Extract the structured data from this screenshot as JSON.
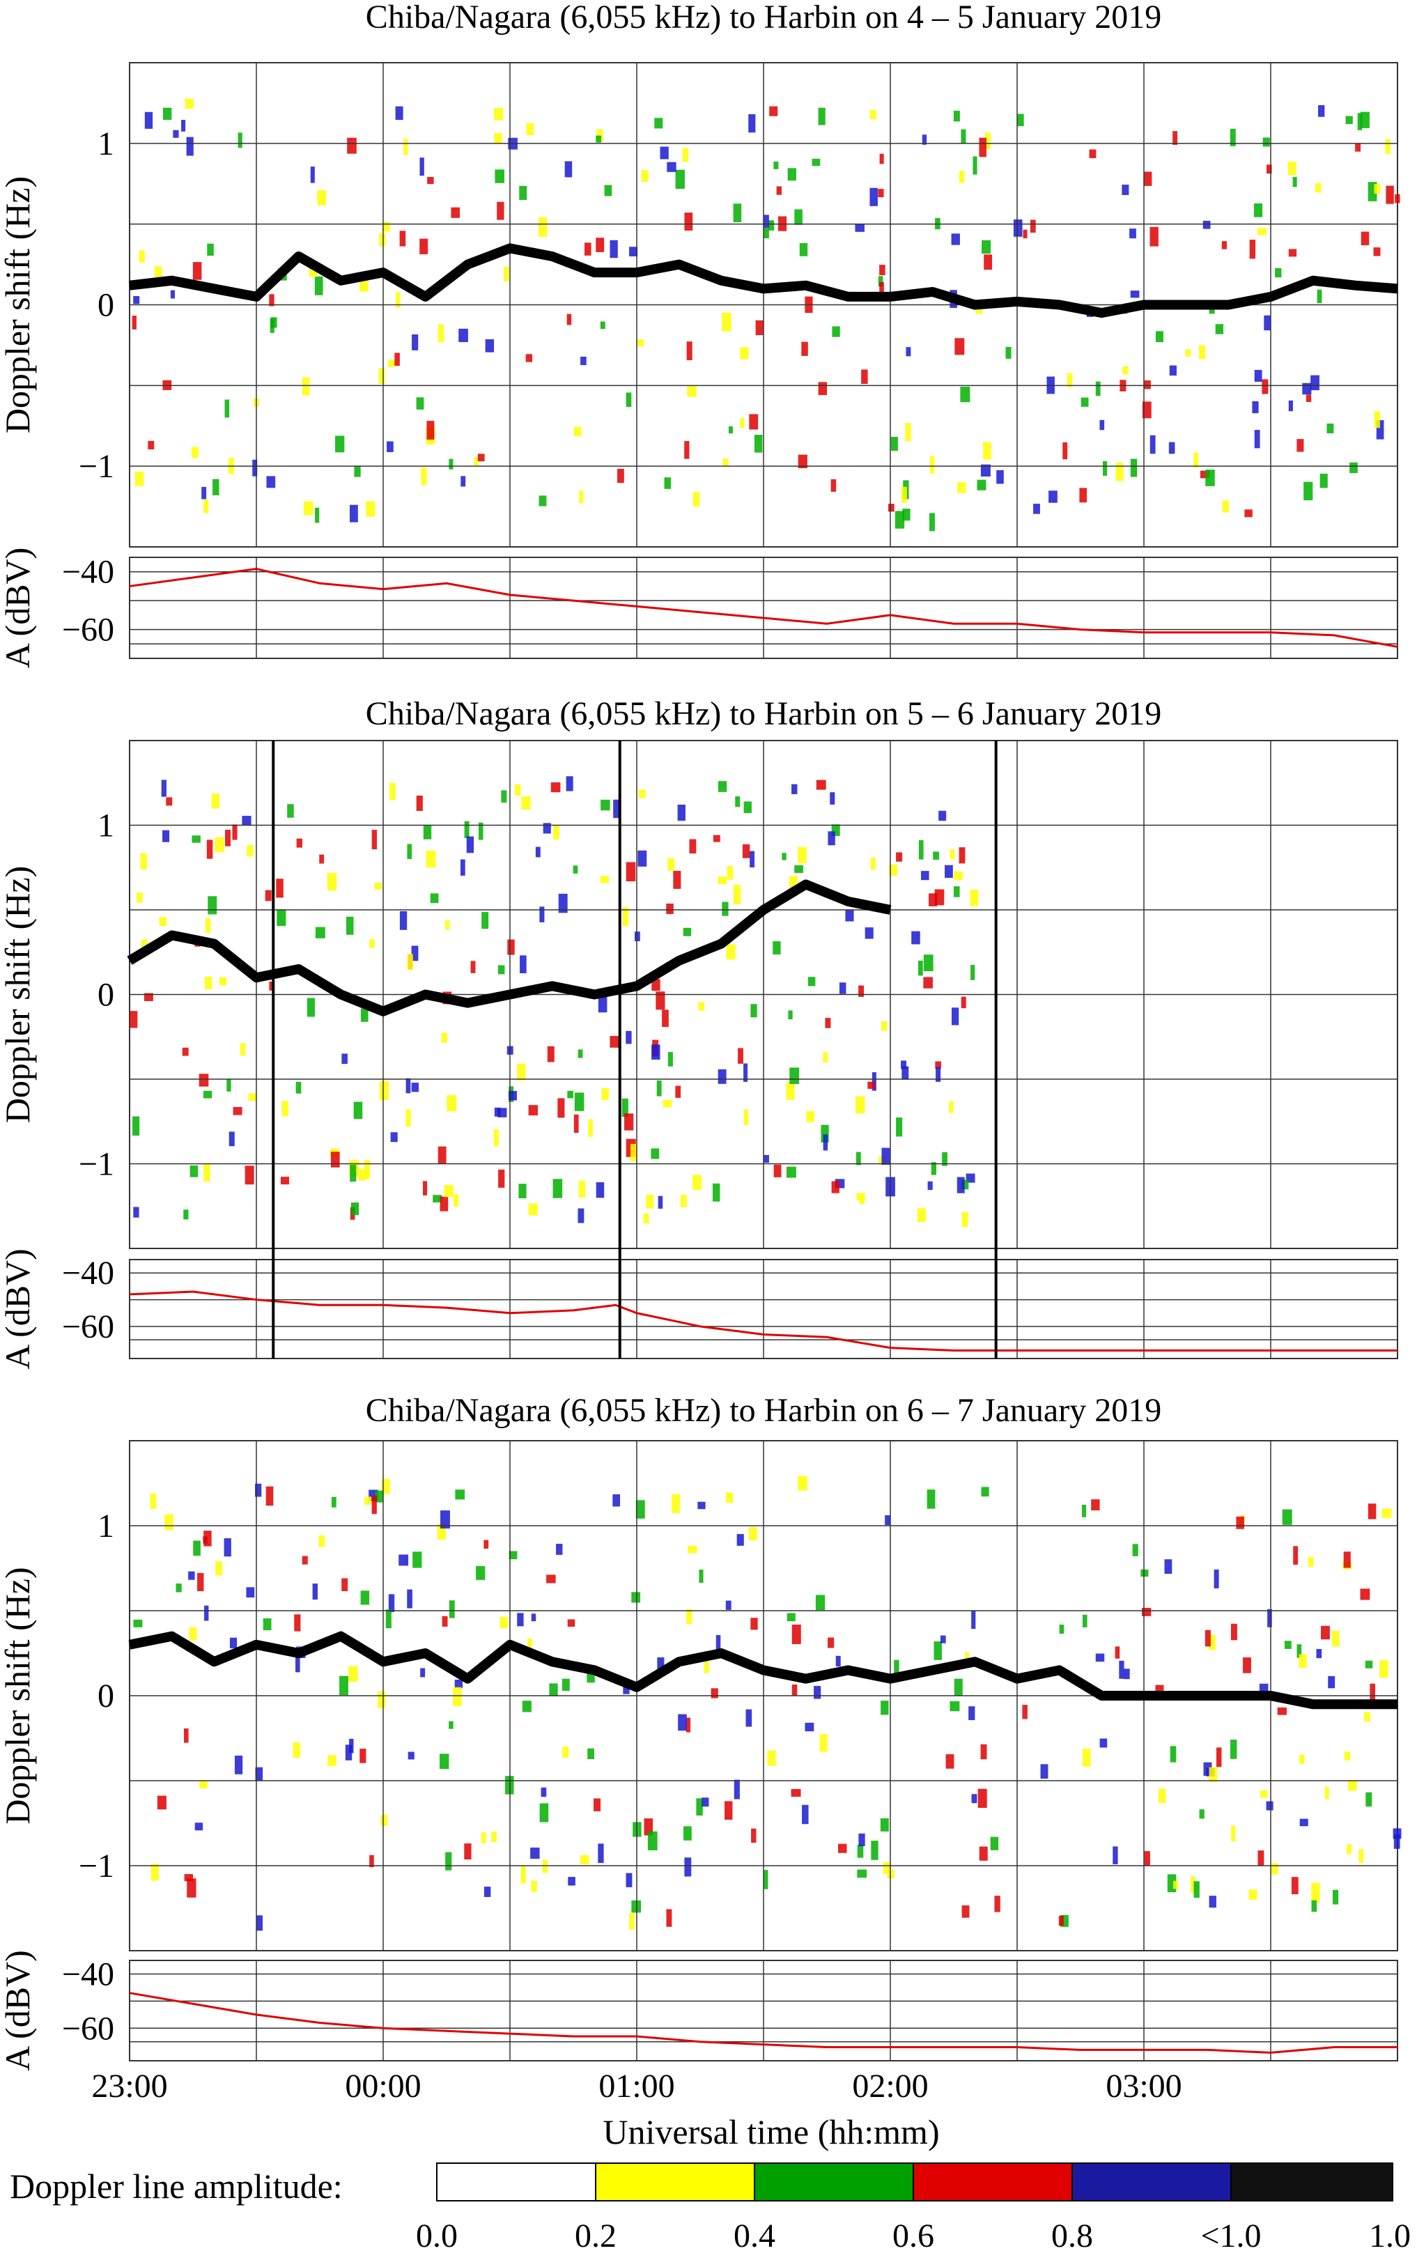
{
  "chart_data": [
    {
      "type": "heatmap",
      "title": "Chiba/Nagara (6,055 kHz) to Harbin on 4 – 5 January 2019",
      "ylabel": "Doppler shift (Hz)",
      "xlabel": "Universal time (hh:mm)",
      "x_ticks": [
        "23:00",
        "00:00",
        "01:00",
        "02:00",
        "03:00"
      ],
      "xlim": [
        "23:00",
        "04:00"
      ],
      "grid_x_interval_min": 30,
      "y_ticks": [
        1,
        0,
        -1
      ],
      "ylim": [
        -1.5,
        1.5
      ],
      "grid_y_interval": 0.5,
      "doppler_trace": {
        "x": [
          "23:00",
          "23:10",
          "23:20",
          "23:30",
          "23:40",
          "23:50",
          "00:00",
          "00:10",
          "00:20",
          "00:30",
          "00:40",
          "00:50",
          "01:00",
          "01:10",
          "01:20",
          "01:30",
          "01:40",
          "01:50",
          "02:00",
          "02:10",
          "02:20",
          "02:30",
          "02:40",
          "02:50",
          "03:00",
          "03:10",
          "03:20",
          "03:30",
          "03:40",
          "03:50",
          "04:00"
        ],
        "y": [
          0.12,
          0.15,
          0.1,
          0.05,
          0.3,
          0.15,
          0.2,
          0.05,
          0.25,
          0.35,
          0.3,
          0.2,
          0.2,
          0.25,
          0.15,
          0.1,
          0.12,
          0.05,
          0.05,
          0.08,
          0.0,
          0.02,
          0.0,
          -0.05,
          0.0,
          0.0,
          0.0,
          0.05,
          0.15,
          0.12,
          0.1
        ]
      },
      "amplitude_panel": {
        "ylabel": "A (dBV)",
        "y_ticks": [
          -40,
          -60
        ],
        "ylim": [
          -70,
          -35
        ],
        "x": [
          "23:00",
          "23:15",
          "23:30",
          "23:45",
          "00:00",
          "00:15",
          "00:30",
          "00:45",
          "01:00",
          "01:15",
          "01:30",
          "01:45",
          "02:00",
          "02:15",
          "02:30",
          "02:45",
          "03:00",
          "03:15",
          "03:30",
          "03:45",
          "04:00"
        ],
        "values": [
          -45,
          -42,
          -39,
          -44,
          -46,
          -44,
          -48,
          -50,
          -52,
          -54,
          -56,
          -58,
          -55,
          -58,
          -58,
          -60,
          -61,
          -61,
          -61,
          -62,
          -66
        ]
      }
    },
    {
      "type": "heatmap",
      "title": "Chiba/Nagara (6,055 kHz) to Harbin on 5 – 6 January 2019",
      "ylabel": "Doppler shift (Hz)",
      "xlabel": "Universal time (hh:mm)",
      "x_ticks": [
        "23:00",
        "00:00",
        "01:00",
        "02:00",
        "03:00"
      ],
      "xlim": [
        "23:00",
        "04:00"
      ],
      "grid_x_interval_min": 30,
      "y_ticks": [
        1,
        0,
        -1
      ],
      "ylim": [
        -1.5,
        1.5
      ],
      "grid_y_interval": 0.5,
      "marker_lines": [
        "23:34",
        "00:56",
        "02:25"
      ],
      "doppler_trace": {
        "x": [
          "23:00",
          "23:10",
          "23:20",
          "23:30",
          "23:40",
          "23:50",
          "00:00",
          "00:10",
          "00:20",
          "00:30",
          "00:40",
          "00:50",
          "01:00",
          "01:10",
          "01:20",
          "01:30",
          "01:40",
          "01:50",
          "02:00"
        ],
        "y": [
          0.2,
          0.35,
          0.3,
          0.1,
          0.15,
          0.0,
          -0.1,
          0.0,
          -0.05,
          0.0,
          0.05,
          0.0,
          0.05,
          0.2,
          0.3,
          0.5,
          0.65,
          0.55,
          0.5
        ]
      },
      "amplitude_panel": {
        "ylabel": "A (dBV)",
        "y_ticks": [
          -40,
          -60
        ],
        "ylim": [
          -72,
          -35
        ],
        "x": [
          "23:00",
          "23:15",
          "23:30",
          "23:45",
          "00:00",
          "00:15",
          "00:30",
          "00:45",
          "00:55",
          "01:00",
          "01:15",
          "01:30",
          "01:45",
          "02:00",
          "02:15",
          "02:30",
          "02:45",
          "03:00",
          "03:15",
          "03:30",
          "03:45",
          "04:00"
        ],
        "values": [
          -48,
          -47,
          -50,
          -52,
          -52,
          -53,
          -55,
          -54,
          -52,
          -55,
          -60,
          -63,
          -64,
          -68,
          -69,
          -69,
          -69,
          -69,
          -69,
          -69,
          -69,
          -69
        ]
      }
    },
    {
      "type": "heatmap",
      "title": "Chiba/Nagara (6,055 kHz) to Harbin on 6 – 7 January 2019",
      "ylabel": "Doppler shift (Hz)",
      "xlabel": "Universal time (hh:mm)",
      "x_ticks": [
        "23:00",
        "00:00",
        "01:00",
        "02:00",
        "03:00"
      ],
      "xlim": [
        "23:00",
        "04:00"
      ],
      "grid_x_interval_min": 30,
      "y_ticks": [
        1,
        0,
        -1
      ],
      "ylim": [
        -1.5,
        1.5
      ],
      "grid_y_interval": 0.5,
      "doppler_trace": {
        "x": [
          "23:00",
          "23:10",
          "23:20",
          "23:30",
          "23:40",
          "23:50",
          "00:00",
          "00:10",
          "00:20",
          "00:30",
          "00:40",
          "00:50",
          "01:00",
          "01:10",
          "01:20",
          "01:30",
          "01:40",
          "01:50",
          "02:00",
          "02:10",
          "02:20",
          "02:30",
          "02:40",
          "02:50",
          "03:00",
          "03:10",
          "03:20",
          "03:30",
          "03:40",
          "03:50",
          "04:00"
        ],
        "y": [
          0.3,
          0.35,
          0.2,
          0.3,
          0.25,
          0.35,
          0.2,
          0.25,
          0.1,
          0.3,
          0.2,
          0.15,
          0.05,
          0.2,
          0.25,
          0.15,
          0.1,
          0.15,
          0.1,
          0.15,
          0.2,
          0.1,
          0.15,
          0.0,
          0.0,
          0.0,
          0.0,
          0.0,
          -0.05,
          -0.05,
          -0.05
        ]
      },
      "amplitude_panel": {
        "ylabel": "A (dBV)",
        "y_ticks": [
          -40,
          -60
        ],
        "ylim": [
          -72,
          -35
        ],
        "x": [
          "23:00",
          "23:15",
          "23:30",
          "23:45",
          "00:00",
          "00:15",
          "00:30",
          "00:45",
          "01:00",
          "01:15",
          "01:30",
          "01:45",
          "02:00",
          "02:15",
          "02:30",
          "02:45",
          "03:00",
          "03:15",
          "03:30",
          "03:45",
          "04:00"
        ],
        "values": [
          -47,
          -51,
          -55,
          -58,
          -60,
          -61,
          -62,
          -63,
          -63,
          -65,
          -66,
          -67,
          -67,
          -67,
          -67,
          -68,
          -68,
          -68,
          -69,
          -67,
          -67
        ]
      }
    }
  ],
  "colorbar": {
    "label": "Doppler line amplitude:",
    "ticks": [
      "0.0",
      "0.2",
      "0.4",
      "0.6",
      "0.8",
      "<1.0",
      "1.0"
    ],
    "colors": [
      "#ffffff",
      "#ffff00",
      "#00a000",
      "#e00000",
      "#1a1aa0",
      "#111111"
    ]
  },
  "colors": {
    "grid": "#333333",
    "amplitude_line": "#e00000",
    "trace": "#000000",
    "blue": "#1a1ad0",
    "red": "#e00000",
    "green": "#00b000",
    "yellow": "#ffff00"
  }
}
